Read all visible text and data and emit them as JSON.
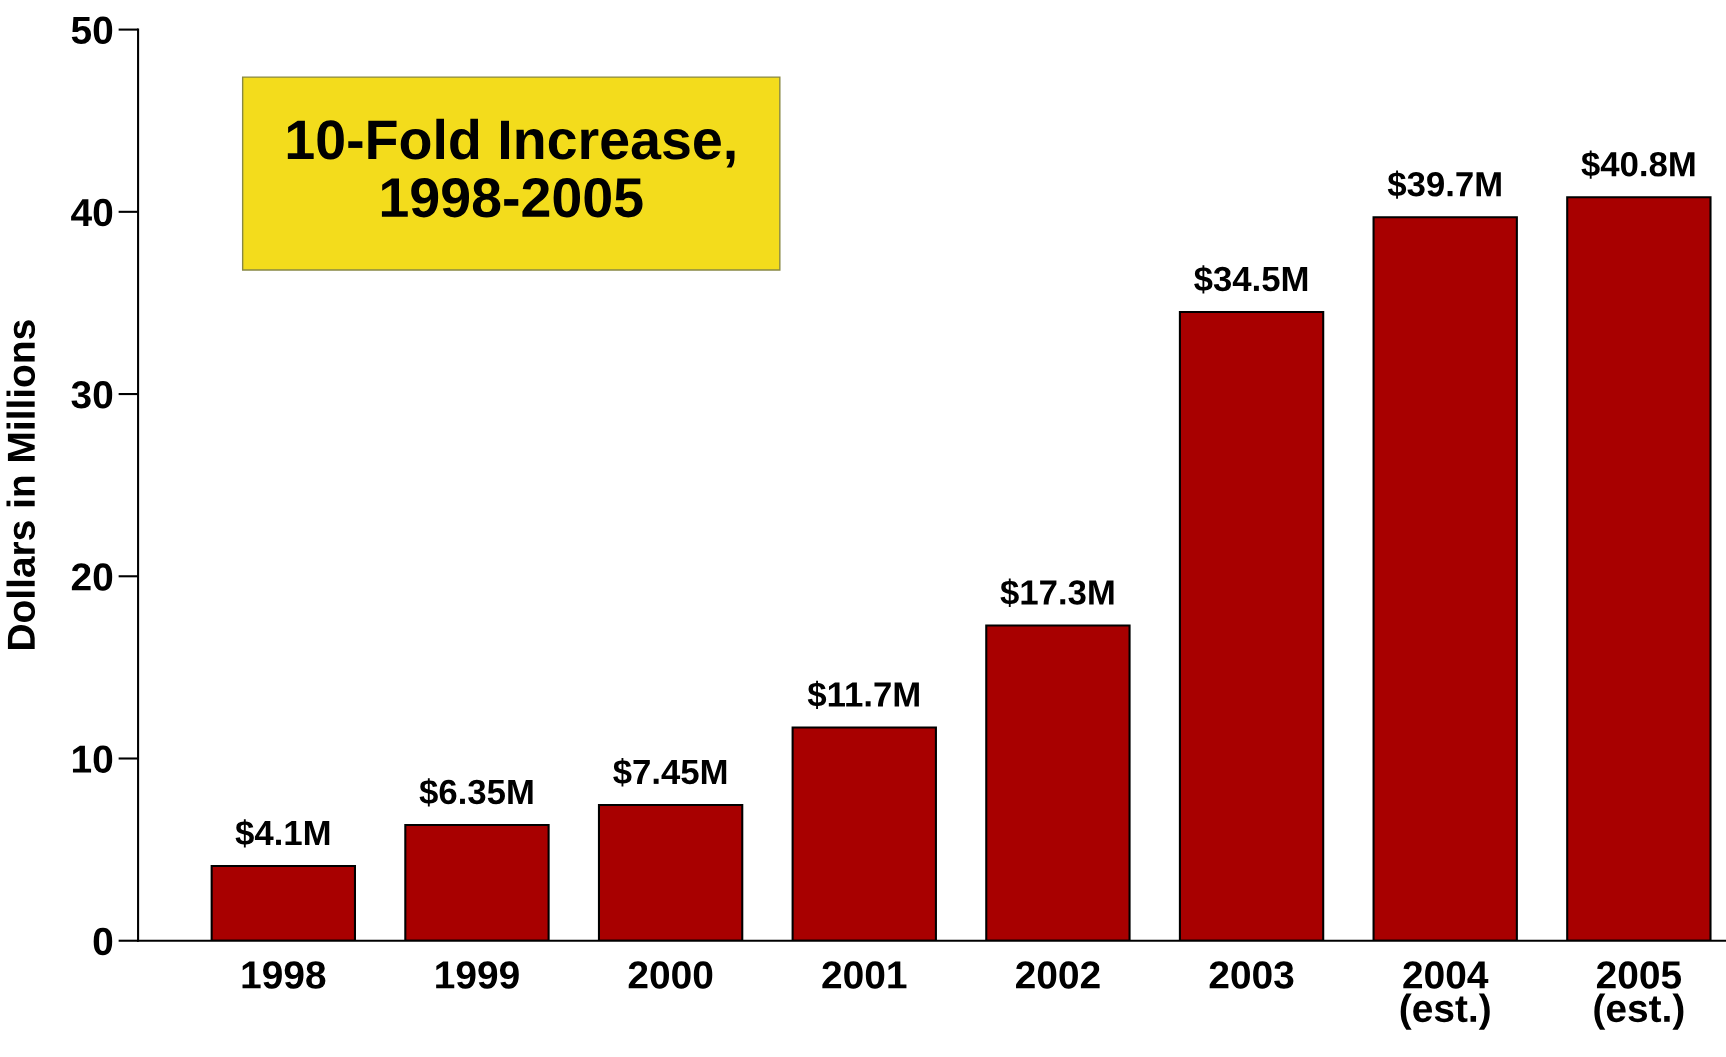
{
  "chart_data": {
    "type": "bar",
    "ylabel": "Dollars in Millions",
    "categories": [
      "1998",
      "1999",
      "2000",
      "2001",
      "2002",
      "2003",
      "2004\n(est.)",
      "2005\n(est.)"
    ],
    "values": [
      4.1,
      6.35,
      7.45,
      11.7,
      17.3,
      34.5,
      39.7,
      40.8
    ],
    "value_labels": [
      "$4.1M",
      "$6.35M",
      "$7.45M",
      "$11.7M",
      "$17.3M",
      "$34.5M",
      "$39.7M",
      "$40.8M"
    ],
    "color": "#a80000",
    "ylim": [
      0,
      50
    ],
    "yticks": [
      0,
      10,
      20,
      30,
      40,
      50
    ],
    "grid": false,
    "legend": false,
    "annotations": [
      "10-Fold Increase,\n1998-2005"
    ]
  }
}
